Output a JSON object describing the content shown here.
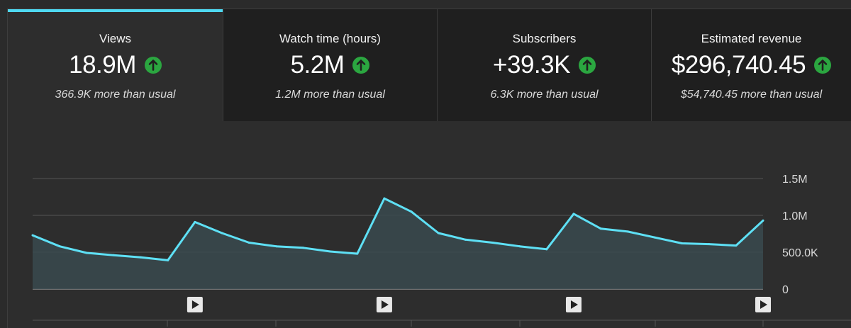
{
  "tabs": [
    {
      "label": "Views",
      "value": "18.9M",
      "note": "366.9K more than usual",
      "trend_icon": "arrow-up-circle-icon"
    },
    {
      "label": "Watch time (hours)",
      "value": "5.2M",
      "note": "1.2M more than usual",
      "trend_icon": "arrow-up-circle-icon"
    },
    {
      "label": "Subscribers",
      "value": "+39.3K",
      "note": "6.3K more than usual",
      "trend_icon": "arrow-up-circle-icon"
    },
    {
      "label": "Estimated revenue",
      "value": "$296,740.45",
      "note": "$54,740.45 more than usual",
      "trend_icon": "arrow-up-circle-icon"
    }
  ],
  "active_tab": 0,
  "colors": {
    "accent": "#4fd9f1",
    "trend_up": "#2ba640",
    "line": "#5ee0f5",
    "area": "#3a4a4f"
  },
  "chart_data": {
    "type": "area",
    "ylim": [
      0,
      1500000
    ],
    "y_ticks": [
      {
        "value": 0,
        "label": "0"
      },
      {
        "value": 500000,
        "label": "500.0K"
      },
      {
        "value": 1000000,
        "label": "1.0M"
      },
      {
        "value": 1500000,
        "label": "1.5M"
      }
    ],
    "grid": true,
    "series": [
      {
        "values": [
          730000,
          580000,
          490000,
          460000,
          430000,
          390000,
          910000,
          760000,
          630000,
          580000,
          560000,
          510000,
          480000,
          1230000,
          1050000,
          760000,
          670000,
          630000,
          580000,
          540000,
          1020000,
          820000,
          780000,
          700000,
          620000,
          610000,
          590000,
          930000
        ]
      }
    ],
    "markers": [
      {
        "index": 6,
        "icon": "play-icon"
      },
      {
        "index": 13,
        "icon": "play-icon"
      },
      {
        "index": 20,
        "icon": "play-icon"
      },
      {
        "index": 27,
        "icon": "play-icon"
      }
    ]
  }
}
